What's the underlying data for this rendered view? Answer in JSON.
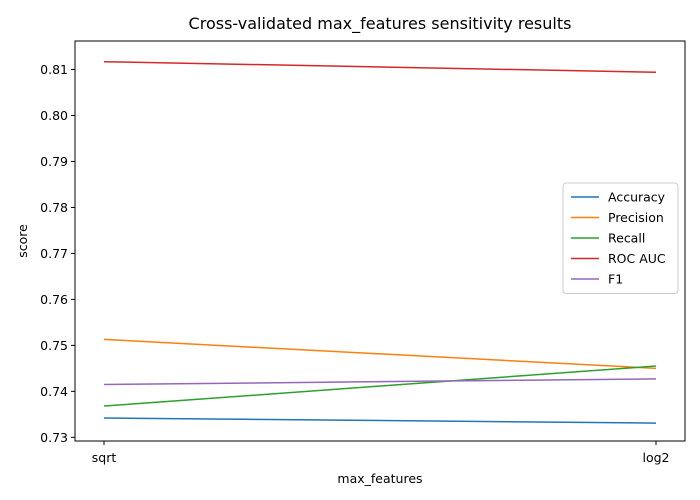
{
  "chart_data": {
    "type": "line",
    "title": "Cross-validated max_features sensitivity results",
    "xlabel": "max_features",
    "ylabel": "score",
    "categories": [
      "sqrt",
      "log2"
    ],
    "ylim": [
      0.7292,
      0.8162
    ],
    "yticks": [
      0.73,
      0.74,
      0.75,
      0.76,
      0.77,
      0.78,
      0.79,
      0.8,
      0.81
    ],
    "ytick_labels": [
      "0.73",
      "0.74",
      "0.75",
      "0.76",
      "0.77",
      "0.78",
      "0.79",
      "0.80",
      "0.81"
    ],
    "grid": false,
    "legend_position": "center-right",
    "series": [
      {
        "name": "Accuracy",
        "values": [
          0.7342,
          0.7331
        ],
        "color": "#1f77b4"
      },
      {
        "name": "Precision",
        "values": [
          0.7513,
          0.745
        ],
        "color": "#ff7f0e"
      },
      {
        "name": "Recall",
        "values": [
          0.7368,
          0.7455
        ],
        "color": "#2ca02c"
      },
      {
        "name": "ROC AUC",
        "values": [
          0.8117,
          0.8094
        ],
        "color": "#d62728"
      },
      {
        "name": "F1",
        "values": [
          0.7415,
          0.7427
        ],
        "color": "#9467bd"
      }
    ]
  }
}
